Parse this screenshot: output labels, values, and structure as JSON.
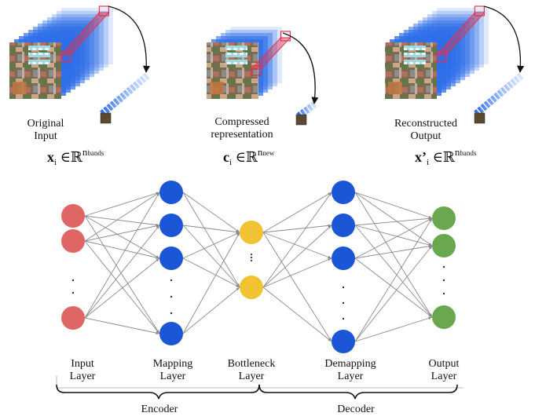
{
  "top_panels": [
    {
      "caption_line1": "Original",
      "caption_line2": "Input",
      "math": {
        "symbol": "x",
        "sub": "i",
        "rel": "∈",
        "set": "ℝ",
        "exp": "n",
        "exp_sub": "bands"
      }
    },
    {
      "caption_line1": "Compressed",
      "caption_line2": "representation",
      "math": {
        "symbol": "c",
        "sub": "i",
        "rel": "∈",
        "set": "ℝ",
        "exp": "n",
        "exp_sub": "new"
      }
    },
    {
      "caption_line1": "Reconstructed",
      "caption_line2": "Output",
      "math": {
        "symbol": "x’",
        "sub": "i",
        "rel": "∈",
        "set": "ℝ",
        "exp": "n",
        "exp_sub": "bands"
      }
    }
  ],
  "network": {
    "layers": [
      {
        "label_line1": "Input",
        "label_line2": "Layer",
        "color": "#e06666",
        "nodes_shown": 3
      },
      {
        "label_line1": "Mapping",
        "label_line2": "Layer",
        "color": "#1a56d6",
        "nodes_shown": 4
      },
      {
        "label_line1": "Bottleneck",
        "label_line2": "Layer",
        "color": "#f1c232",
        "nodes_shown": 2
      },
      {
        "label_line1": "Demapping",
        "label_line2": "Layer",
        "color": "#1a56d6",
        "nodes_shown": 4
      },
      {
        "label_line1": "Output",
        "label_line2": "Layer",
        "color": "#6aa84f",
        "nodes_shown": 3
      }
    ],
    "edge_color": "#8a8a8a"
  },
  "groups": {
    "encoder": "Encoder",
    "decoder": "Decoder"
  },
  "colors": {
    "cube_blue": "#2f6fe8",
    "cube_red": "#e0334d"
  }
}
